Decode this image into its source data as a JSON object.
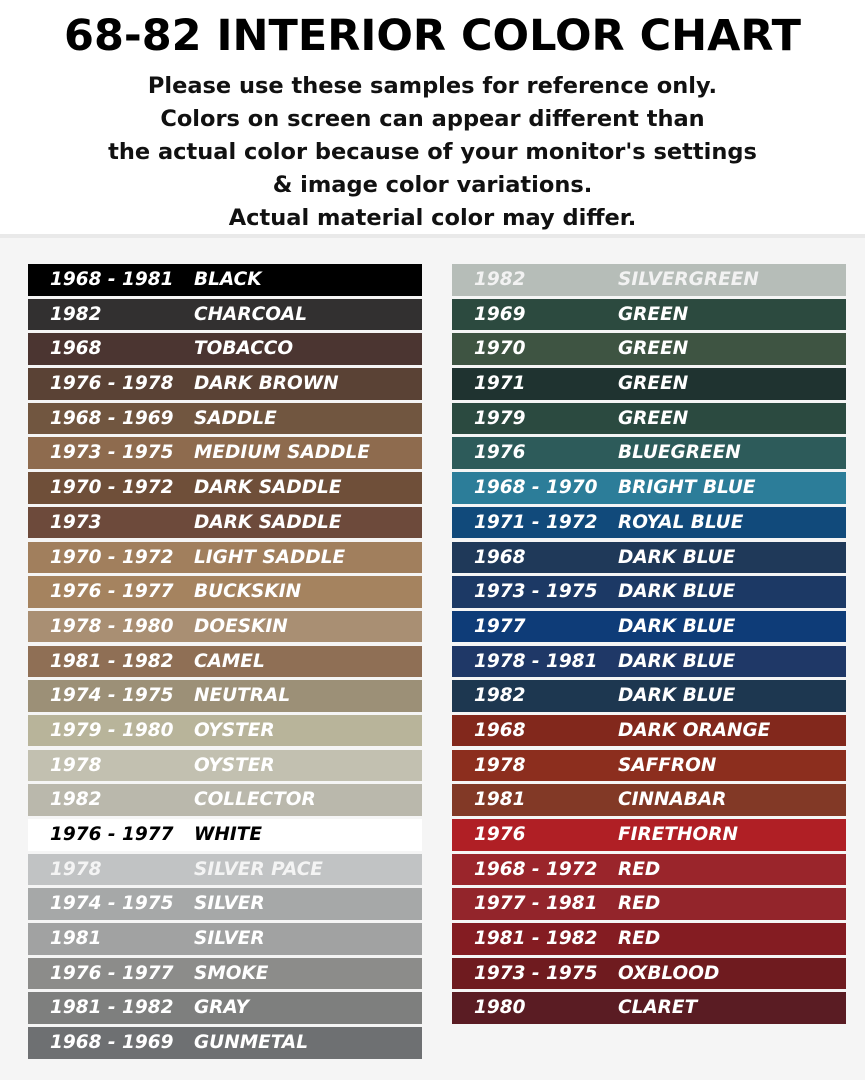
{
  "title": "68-82 INTERIOR COLOR CHART",
  "notes": [
    "Please use these samples for reference only.",
    "Colors on screen can appear different than",
    "the actual color because of your monitor's settings",
    "& image color variations.",
    "Actual material color may differ."
  ],
  "left_swatches": [
    {
      "years": "1968 - 1981",
      "name": "BLACK",
      "color": "#000000",
      "text_color": "#ffffff"
    },
    {
      "years": "1982",
      "name": "CHARCOAL",
      "color": "#323030",
      "text_color": "#ffffff"
    },
    {
      "years": "1968",
      "name": "TOBACCO",
      "color": "#4b3531",
      "text_color": "#ffffff"
    },
    {
      "years": "1976 - 1978",
      "name": "DARK BROWN",
      "color": "#5a4235",
      "text_color": "#ffffff"
    },
    {
      "years": "1968 - 1969",
      "name": "SADDLE",
      "color": "#715640",
      "text_color": "#ffffff"
    },
    {
      "years": "1973 - 1975",
      "name": "MEDIUM SADDLE",
      "color": "#8e6b4e",
      "text_color": "#ffffff"
    },
    {
      "years": "1970 - 1972",
      "name": "DARK SADDLE",
      "color": "#6f4f39",
      "text_color": "#ffffff"
    },
    {
      "years": "1973",
      "name": "DARK SADDLE",
      "color": "#6d4a3b",
      "text_color": "#ffffff"
    },
    {
      "years": "1970 - 1972",
      "name": "LIGHT SADDLE",
      "color": "#a17f5d",
      "text_color": "#ffffff"
    },
    {
      "years": "1976 - 1977",
      "name": "BUCKSKIN",
      "color": "#a5835f",
      "text_color": "#ffffff"
    },
    {
      "years": "1978 - 1980",
      "name": "DOESKIN",
      "color": "#a98f73",
      "text_color": "#ffffff"
    },
    {
      "years": "1981 - 1982",
      "name": "CAMEL",
      "color": "#8f6f55",
      "text_color": "#ffffff"
    },
    {
      "years": "1974 - 1975",
      "name": "NEUTRAL",
      "color": "#9c9077",
      "text_color": "#ffffff"
    },
    {
      "years": "1979 - 1980",
      "name": "OYSTER",
      "color": "#b8b49a",
      "text_color": "#ffffff"
    },
    {
      "years": "1978",
      "name": "OYSTER",
      "color": "#c2c0b0",
      "text_color": "#ffffff"
    },
    {
      "years": "1982",
      "name": "COLLECTOR",
      "color": "#bab8ac",
      "text_color": "#ffffff"
    },
    {
      "years": "1976 - 1977",
      "name": "WHITE",
      "color": "#ffffff",
      "text_color": "#000000"
    },
    {
      "years": "1978",
      "name": "SILVER PACE",
      "color": "#c1c3c4",
      "text_color": "#f4f4f4"
    },
    {
      "years": "1974 - 1975",
      "name": "SILVER",
      "color": "#a6a8a8",
      "text_color": "#ffffff"
    },
    {
      "years": "1981",
      "name": "SILVER",
      "color": "#a1a2a2",
      "text_color": "#ffffff"
    },
    {
      "years": "1976 - 1977",
      "name": "SMOKE",
      "color": "#8c8c8a",
      "text_color": "#ffffff"
    },
    {
      "years": "1981 - 1982",
      "name": "GRAY",
      "color": "#7e7f7e",
      "text_color": "#ffffff"
    },
    {
      "years": "1968 - 1969",
      "name": "GUNMETAL",
      "color": "#6e7072",
      "text_color": "#ffffff"
    }
  ],
  "right_swatches": [
    {
      "years": "1982",
      "name": "SILVERGREEN",
      "color": "#b6bdb8",
      "text_color": "#f2f2f2"
    },
    {
      "years": "1969",
      "name": "GREEN",
      "color": "#2c4a3f",
      "text_color": "#ffffff"
    },
    {
      "years": "1970",
      "name": "GREEN",
      "color": "#3e5442",
      "text_color": "#ffffff"
    },
    {
      "years": "1971",
      "name": "GREEN",
      "color": "#1f3330",
      "text_color": "#ffffff"
    },
    {
      "years": "1979",
      "name": "GREEN",
      "color": "#2b4a40",
      "text_color": "#ffffff"
    },
    {
      "years": "1976",
      "name": "BLUEGREEN",
      "color": "#2d5b5a",
      "text_color": "#ffffff"
    },
    {
      "years": "1968 - 1970",
      "name": "BRIGHT BLUE",
      "color": "#2c7d99",
      "text_color": "#ffffff"
    },
    {
      "years": "1971 - 1972",
      "name": "ROYAL BLUE",
      "color": "#114a7b",
      "text_color": "#ffffff"
    },
    {
      "years": "1968",
      "name": "DARK BLUE",
      "color": "#1f3959",
      "text_color": "#ffffff"
    },
    {
      "years": "1973 - 1975",
      "name": "DARK BLUE",
      "color": "#1c3965",
      "text_color": "#ffffff"
    },
    {
      "years": "1977",
      "name": "DARK BLUE",
      "color": "#0e3c78",
      "text_color": "#ffffff"
    },
    {
      "years": "1978 - 1981",
      "name": "DARK BLUE",
      "color": "#1f3867",
      "text_color": "#ffffff"
    },
    {
      "years": "1982",
      "name": "DARK BLUE",
      "color": "#1d3750",
      "text_color": "#ffffff"
    },
    {
      "years": "1968",
      "name": "DARK ORANGE",
      "color": "#82281c",
      "text_color": "#ffffff"
    },
    {
      "years": "1978",
      "name": "SAFFRON",
      "color": "#8c2e1e",
      "text_color": "#ffffff"
    },
    {
      "years": "1981",
      "name": "CINNABAR",
      "color": "#823926",
      "text_color": "#ffffff"
    },
    {
      "years": "1976",
      "name": "FIRETHORN",
      "color": "#b01f25",
      "text_color": "#ffffff"
    },
    {
      "years": "1968 - 1972",
      "name": "RED",
      "color": "#9a252b",
      "text_color": "#ffffff"
    },
    {
      "years": "1977 - 1981",
      "name": "RED",
      "color": "#93252b",
      "text_color": "#ffffff"
    },
    {
      "years": "1981 - 1982",
      "name": "RED",
      "color": "#841c22",
      "text_color": "#ffffff"
    },
    {
      "years": "1973 - 1975",
      "name": "OXBLOOD",
      "color": "#6f1b1f",
      "text_color": "#ffffff"
    },
    {
      "years": "1980",
      "name": "CLARET",
      "color": "#5a1c23",
      "text_color": "#ffffff"
    }
  ]
}
